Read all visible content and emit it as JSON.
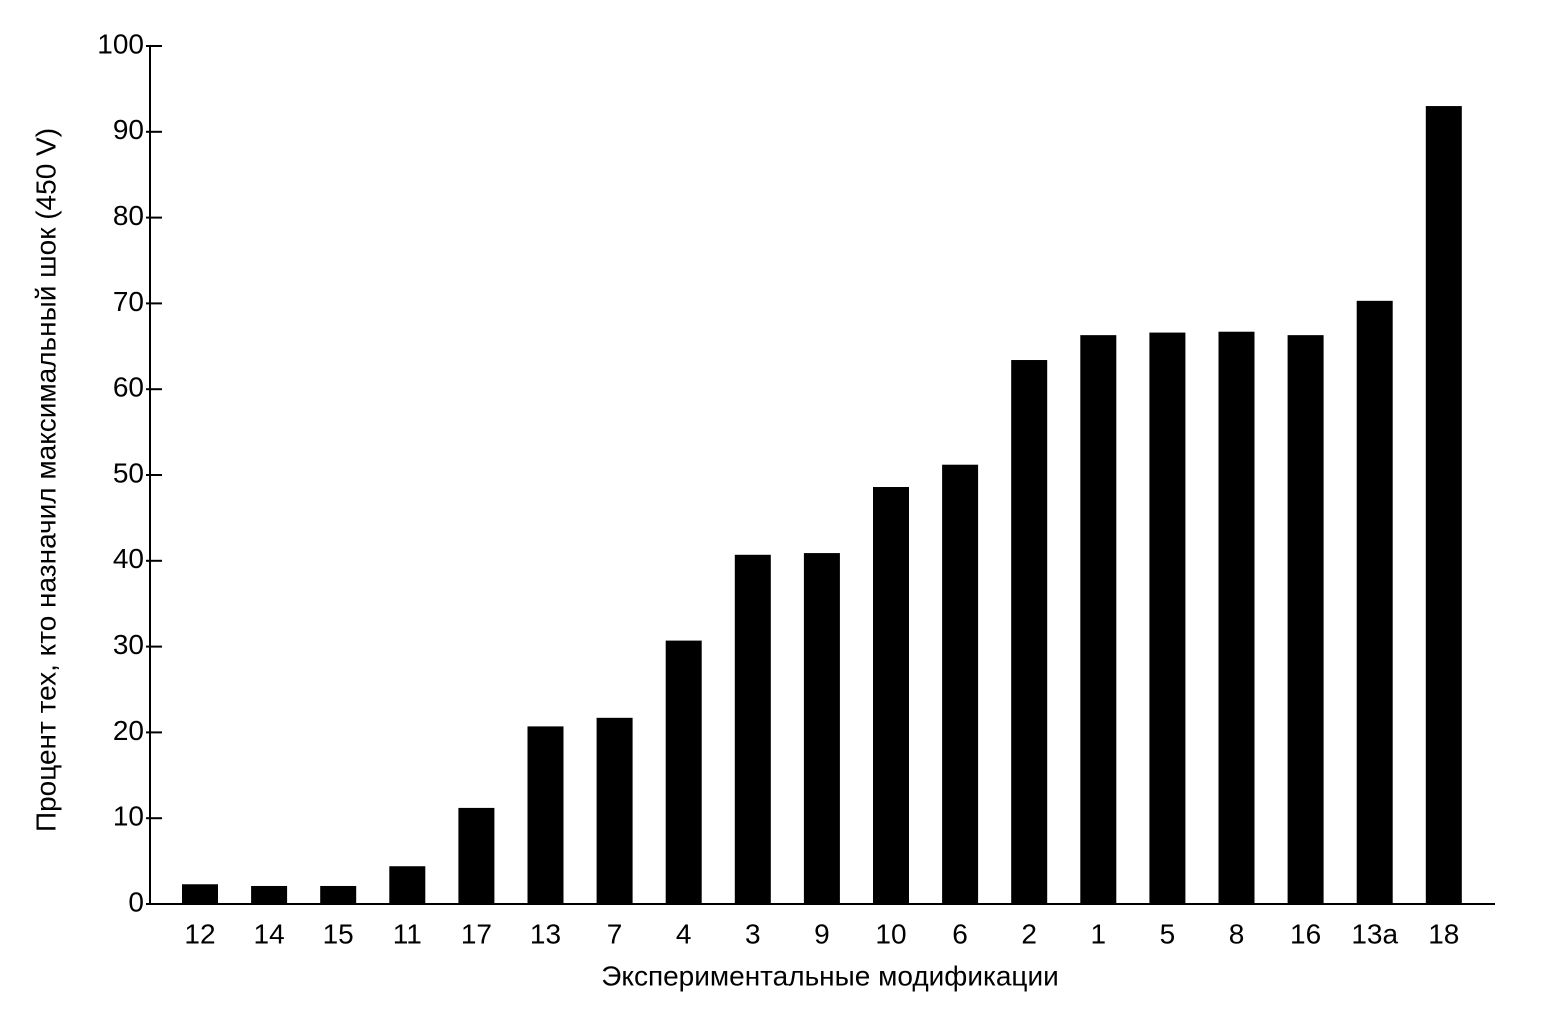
{
  "chart_data": {
    "type": "bar",
    "x_label": "Экспериментальные модификации",
    "y_label": "Процент тех, кто назначил максимальный шок (450 V)",
    "categories": [
      "12",
      "14",
      "15",
      "11",
      "17",
      "13",
      "7",
      "4",
      "3",
      "9",
      "10",
      "6",
      "2",
      "1",
      "5",
      "8",
      "16",
      "13a",
      "18"
    ],
    "values": [
      2.3,
      2.1,
      2.1,
      4.4,
      11.2,
      20.7,
      21.7,
      30.7,
      40.7,
      40.9,
      48.6,
      51.2,
      63.4,
      66.3,
      66.6,
      66.7,
      66.3,
      70.3,
      93
    ],
    "color": "#000000",
    "ylim": [
      0,
      100
    ],
    "yticks": [
      0,
      10,
      20,
      30,
      40,
      50,
      60,
      70,
      80,
      90,
      100
    ],
    "grid": false
  }
}
